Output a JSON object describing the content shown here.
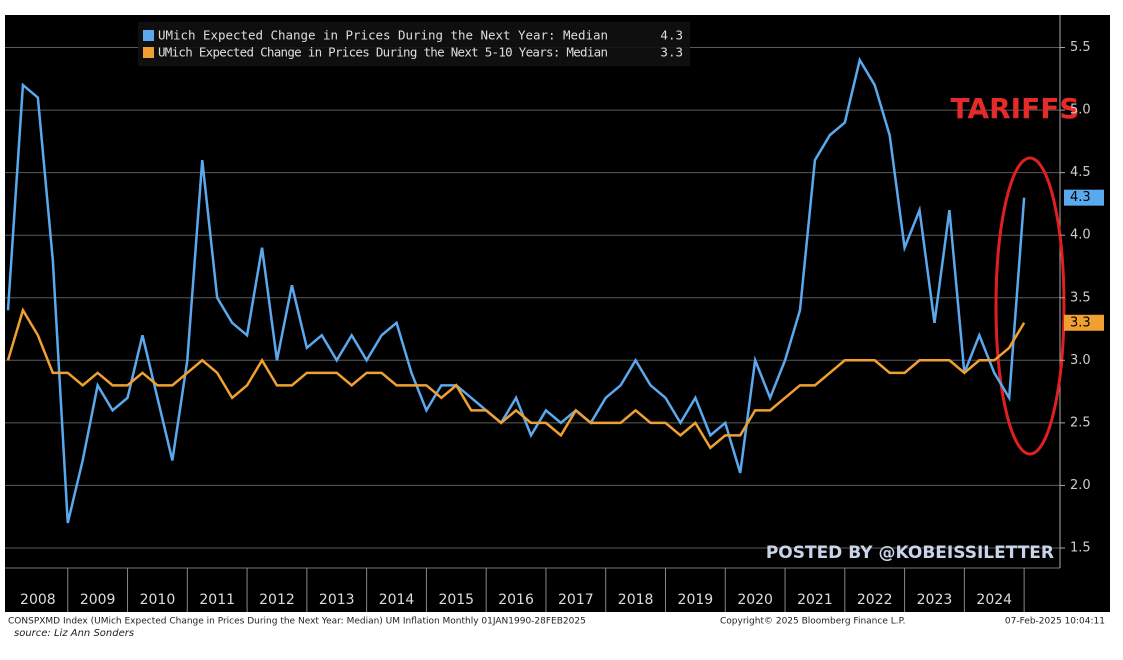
{
  "chart_data": {
    "type": "line",
    "x": [
      2008.0,
      2008.25,
      2008.5,
      2008.75,
      2009.0,
      2009.25,
      2009.5,
      2009.75,
      2010.0,
      2010.25,
      2010.5,
      2010.75,
      2011.0,
      2011.25,
      2011.5,
      2011.75,
      2012.0,
      2012.25,
      2012.5,
      2012.75,
      2013.0,
      2013.25,
      2013.5,
      2013.75,
      2014.0,
      2014.25,
      2014.5,
      2014.75,
      2015.0,
      2015.25,
      2015.5,
      2015.75,
      2016.0,
      2016.25,
      2016.5,
      2016.75,
      2017.0,
      2017.25,
      2017.5,
      2017.75,
      2018.0,
      2018.25,
      2018.5,
      2018.75,
      2019.0,
      2019.25,
      2019.5,
      2019.75,
      2020.0,
      2020.25,
      2020.5,
      2020.75,
      2021.0,
      2021.25,
      2021.5,
      2021.75,
      2022.0,
      2022.25,
      2022.5,
      2022.75,
      2023.0,
      2023.25,
      2023.5,
      2023.75,
      2024.0,
      2024.25,
      2024.5,
      2024.75,
      2025.0
    ],
    "series": [
      {
        "name": "UMich Expected Change in Prices During the Next Year: Median",
        "color": "#5aa9ee",
        "values": [
          3.4,
          5.2,
          5.1,
          3.8,
          1.7,
          2.2,
          2.8,
          2.6,
          2.7,
          3.2,
          2.7,
          2.2,
          3.0,
          4.6,
          3.5,
          3.3,
          3.2,
          3.9,
          3.0,
          3.6,
          3.1,
          3.2,
          3.0,
          3.2,
          3.0,
          3.2,
          3.3,
          2.9,
          2.6,
          2.8,
          2.8,
          2.7,
          2.6,
          2.5,
          2.7,
          2.4,
          2.6,
          2.5,
          2.6,
          2.5,
          2.7,
          2.8,
          3.0,
          2.8,
          2.7,
          2.5,
          2.7,
          2.4,
          2.5,
          2.1,
          3.0,
          2.7,
          3.0,
          3.4,
          4.6,
          4.8,
          4.9,
          5.4,
          5.2,
          4.8,
          3.9,
          4.2,
          3.3,
          4.2,
          2.9,
          3.2,
          2.9,
          2.7,
          4.3
        ]
      },
      {
        "name": "UMich Expected Change in Prices During the Next 5-10 Years: Median",
        "color": "#f0a030",
        "values": [
          3.0,
          3.4,
          3.2,
          2.9,
          2.9,
          2.8,
          2.9,
          2.8,
          2.8,
          2.9,
          2.8,
          2.8,
          2.9,
          3.0,
          2.9,
          2.7,
          2.8,
          3.0,
          2.8,
          2.8,
          2.9,
          2.9,
          2.9,
          2.8,
          2.9,
          2.9,
          2.8,
          2.8,
          2.8,
          2.7,
          2.8,
          2.6,
          2.6,
          2.5,
          2.6,
          2.5,
          2.5,
          2.4,
          2.6,
          2.5,
          2.5,
          2.5,
          2.6,
          2.5,
          2.5,
          2.4,
          2.5,
          2.3,
          2.4,
          2.4,
          2.6,
          2.6,
          2.7,
          2.8,
          2.8,
          2.9,
          3.0,
          3.0,
          3.0,
          2.9,
          2.9,
          3.0,
          3.0,
          3.0,
          2.9,
          3.0,
          3.0,
          3.1,
          3.3
        ]
      }
    ],
    "xlim": [
      2007.95,
      2025.6
    ],
    "xticks": [
      2008,
      2009,
      2010,
      2011,
      2012,
      2013,
      2014,
      2015,
      2016,
      2017,
      2018,
      2019,
      2020,
      2021,
      2022,
      2023,
      2024
    ],
    "ylim": [
      1.34,
      5.76
    ],
    "yticks": [
      1.5,
      {
        "value": 2,
        "label": "2.0"
      },
      2.5,
      {
        "value": 3,
        "label": "3.0"
      },
      3.5,
      {
        "value": 4,
        "label": "4.0"
      },
      4.5,
      {
        "value": 5,
        "label": "5.0"
      },
      5.5
    ],
    "grid": true,
    "annotations": [
      "TARIFFS",
      "POSTED BY @KOBEISSILETTER"
    ],
    "footer": [
      "CONSPXMD Index (UMich Expected Change in Prices During the Next Year: Median) UM Inflation  Monthly 01JAN1990-28FEB2025",
      "Copyright© 2025 Bloomberg Finance L.P.",
      "07-Feb-2025 10:04:11",
      "source: Liz Ann Sonders"
    ]
  }
}
